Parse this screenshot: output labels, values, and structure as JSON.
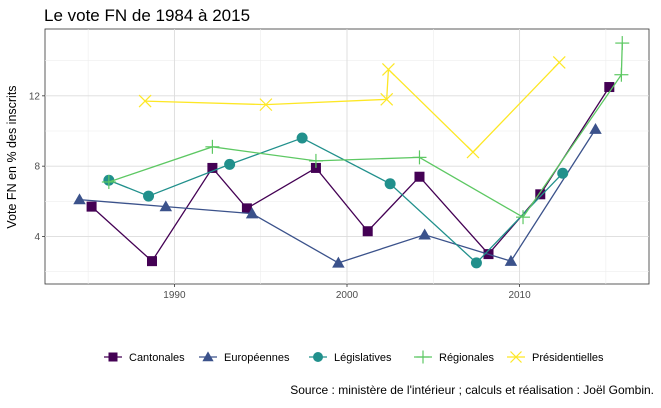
{
  "chart_data": {
    "type": "line",
    "title": "Le vote FN de 1984 à 2015",
    "xlabel": "",
    "ylabel": "Vote FN en % des inscrits",
    "xlim": [
      1982.5,
      2017.5
    ],
    "ylim": [
      1.3,
      15.8
    ],
    "x_ticks": [
      1990,
      2000,
      2010
    ],
    "y_ticks": [
      4,
      8,
      12
    ],
    "grid": true,
    "legend_position": "bottom",
    "caption": "Source : ministère de l'intérieur ; calculs et réalisation : Joël Gombin.",
    "series": [
      {
        "name": "Cantonales",
        "color": "#440154",
        "marker": "square",
        "x": [
          1985.2,
          1988.7,
          1992.2,
          1994.2,
          1998.2,
          2001.2,
          2004.2,
          2008.2,
          2011.2,
          2015.2
        ],
        "y": [
          5.7,
          2.6,
          7.9,
          5.6,
          7.9,
          4.3,
          7.4,
          3.0,
          6.4,
          12.5
        ]
      },
      {
        "name": "Européennes",
        "color": "#3b528b",
        "marker": "triangle",
        "x": [
          1984.5,
          1989.5,
          1994.5,
          1999.5,
          2004.5,
          2009.5,
          2014.4
        ],
        "y": [
          6.1,
          5.7,
          5.3,
          2.5,
          4.1,
          2.6,
          10.1
        ]
      },
      {
        "name": "Législatives",
        "color": "#21908c",
        "marker": "circle",
        "x": [
          1986.2,
          1988.5,
          1993.2,
          1997.4,
          2002.5,
          2007.5,
          2012.5
        ],
        "y": [
          7.2,
          6.3,
          8.1,
          9.6,
          7.0,
          2.5,
          7.6
        ]
      },
      {
        "name": "Régionales",
        "color": "#5dc863",
        "marker": "plus",
        "x": [
          1986.2,
          1992.2,
          1998.2,
          2004.2,
          2010.2,
          2015.9,
          2015.95
        ],
        "y": [
          7.1,
          9.1,
          8.3,
          8.5,
          5.1,
          13.2,
          15.0
        ]
      },
      {
        "name": "Présidentielles",
        "color": "#fde725",
        "marker": "cross",
        "x": [
          1988.3,
          1995.3,
          2002.3,
          2002.4,
          2007.3,
          2012.3
        ],
        "y": [
          11.7,
          11.5,
          11.8,
          13.5,
          8.8,
          13.9
        ]
      }
    ]
  }
}
